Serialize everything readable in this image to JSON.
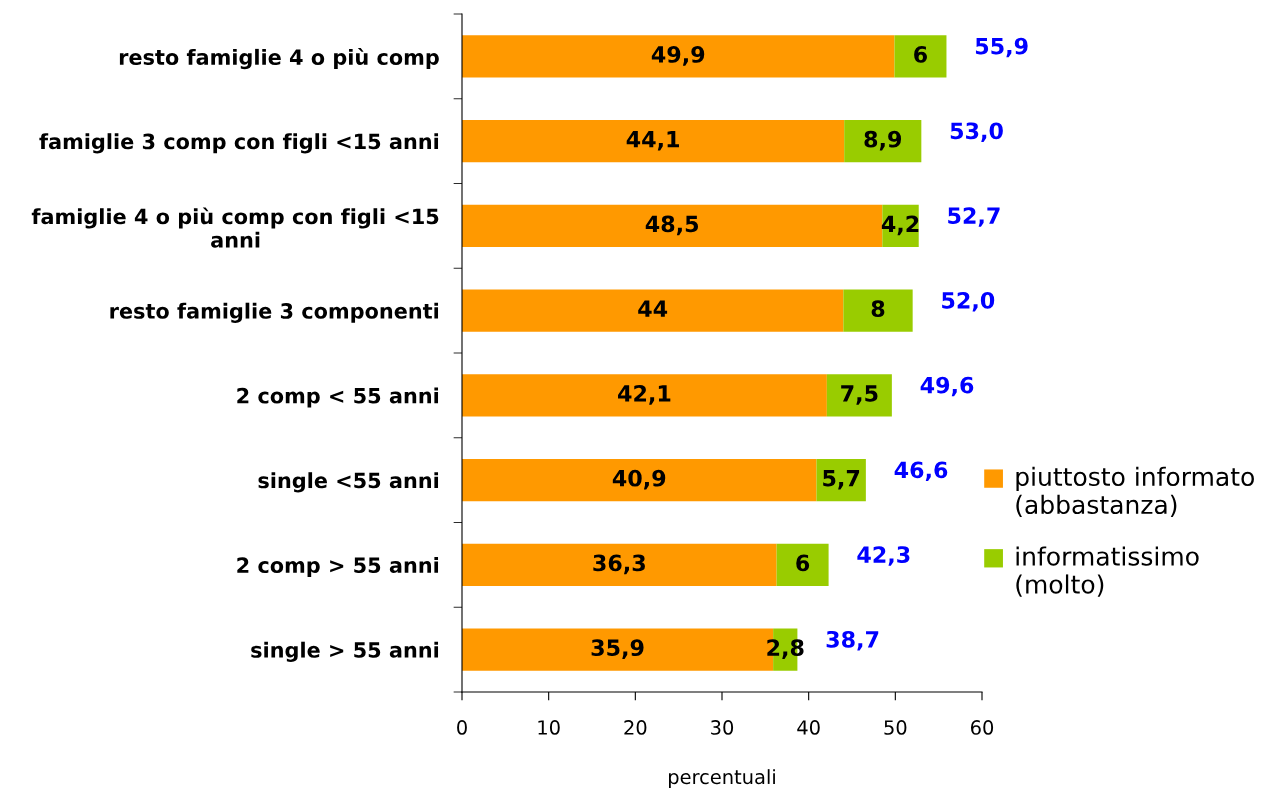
{
  "chart_data": {
    "type": "bar",
    "orientation": "horizontal",
    "stacked": true,
    "categories": [
      "resto famiglie 4 o più comp",
      "famiglie 3 comp con figli <15 anni",
      "famiglie 4 o più comp con figli <15\nanni",
      "resto famiglie 3 componenti",
      "2 comp < 55 anni",
      "single <55 anni",
      "2 comp > 55 anni",
      "single > 55 anni"
    ],
    "series": [
      {
        "name": "piuttosto informato\n(abbastanza)",
        "color": "#ff9900",
        "values": [
          49.9,
          44.1,
          48.5,
          44,
          42.1,
          40.9,
          36.3,
          35.9
        ],
        "value_labels": [
          "49,9",
          "44,1",
          "48,5",
          "44",
          "42,1",
          "40,9",
          "36,3",
          "35,9"
        ]
      },
      {
        "name": "informatissimo\n(molto)",
        "color": "#99cc00",
        "values": [
          6,
          8.9,
          4.2,
          8,
          7.5,
          5.7,
          6,
          2.8
        ],
        "value_labels": [
          "6",
          "8,9",
          "4,2",
          "8",
          "7,5",
          "5,7",
          "6",
          "2,8"
        ]
      }
    ],
    "totals": [
      "55,9",
      "53,0",
      "52,7",
      "52,0",
      "49,6",
      "46,6",
      "42,3",
      "38,7"
    ],
    "xlabel": "percentuali",
    "xlim": [
      0,
      60
    ],
    "xticks": [
      0,
      10,
      20,
      30,
      40,
      50,
      60
    ],
    "grid": false,
    "legend": "right"
  }
}
